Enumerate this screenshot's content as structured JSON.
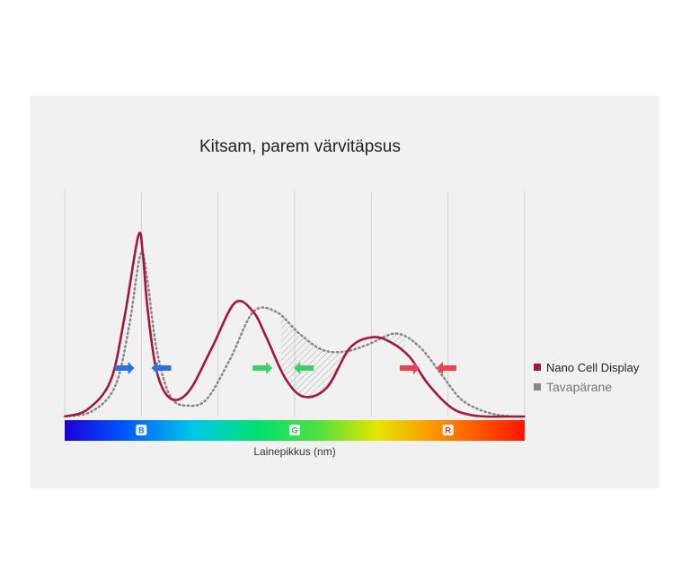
{
  "chart_data": {
    "type": "line",
    "title": "Kitsam, parem värvitäpsus",
    "xlabel": "Lainepikkus (nm)",
    "ylabel": "",
    "grid": true,
    "legend_position": "right",
    "band_labels": [
      "B",
      "G",
      "R"
    ],
    "series": [
      {
        "name": "Nano Cell Display",
        "color": "#a5173a",
        "style": "solid",
        "x": [
          0,
          0.05,
          0.1,
          0.13,
          0.16,
          0.17,
          0.18,
          0.2,
          0.23,
          0.27,
          0.32,
          0.37,
          0.41,
          0.44,
          0.48,
          0.52,
          0.57,
          0.62,
          0.67,
          0.71,
          0.75,
          0.79,
          0.84,
          0.88,
          0.92,
          0.96,
          1.0
        ],
        "y": [
          0,
          0.04,
          0.2,
          0.55,
          1.0,
          0.9,
          0.6,
          0.25,
          0.1,
          0.14,
          0.38,
          0.63,
          0.58,
          0.43,
          0.21,
          0.11,
          0.16,
          0.38,
          0.44,
          0.41,
          0.33,
          0.18,
          0.05,
          0.01,
          0.0,
          0.0,
          0.0
        ]
      },
      {
        "name": "Tavapärane",
        "color": "#888888",
        "style": "dotted",
        "x": [
          0,
          0.06,
          0.11,
          0.14,
          0.165,
          0.18,
          0.2,
          0.23,
          0.27,
          0.31,
          0.36,
          0.41,
          0.46,
          0.51,
          0.56,
          0.61,
          0.66,
          0.72,
          0.77,
          0.82,
          0.86,
          0.9,
          0.94,
          0.98,
          1.0
        ],
        "y": [
          0,
          0.03,
          0.17,
          0.5,
          0.9,
          0.75,
          0.37,
          0.11,
          0.06,
          0.1,
          0.32,
          0.58,
          0.58,
          0.46,
          0.37,
          0.36,
          0.4,
          0.46,
          0.39,
          0.23,
          0.1,
          0.04,
          0.01,
          0.0,
          0.0
        ]
      }
    ],
    "shift_arrows": [
      {
        "x": 0.13,
        "direction": "right",
        "color": "#2f6fdc"
      },
      {
        "x": 0.21,
        "direction": "left",
        "color": "#2f6fdc"
      },
      {
        "x": 0.43,
        "direction": "right",
        "color": "#3ecf6a"
      },
      {
        "x": 0.52,
        "direction": "left",
        "color": "#3ecf6a"
      },
      {
        "x": 0.75,
        "direction": "right",
        "color": "#ee4050"
      },
      {
        "x": 0.83,
        "direction": "left",
        "color": "#ee4050"
      }
    ]
  }
}
